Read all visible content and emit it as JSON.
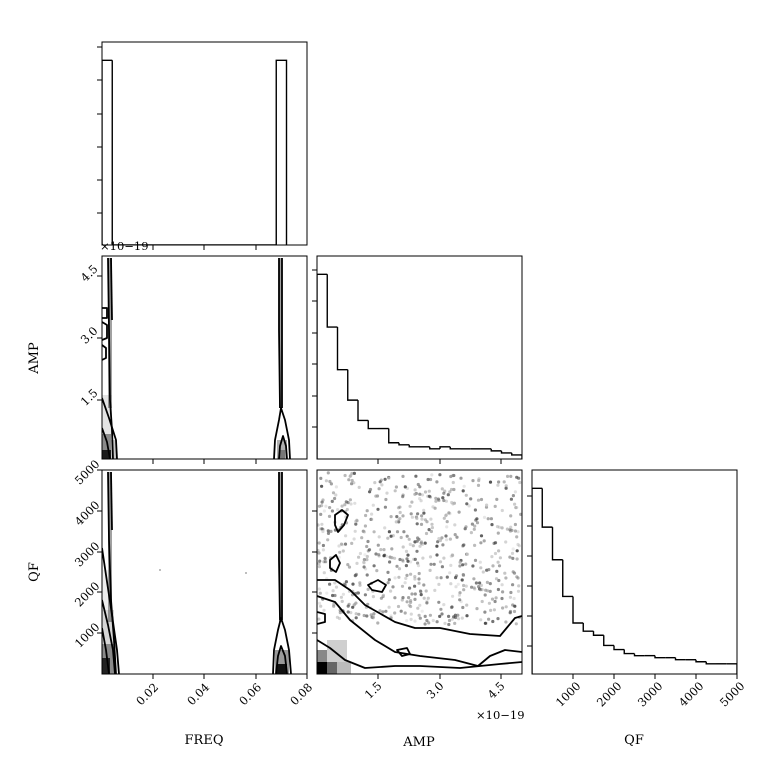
{
  "chart_data": {
    "type": "corner",
    "parameters": [
      "FREQ",
      "AMP",
      "QF"
    ],
    "labels": {
      "freq": "FREQ",
      "amp": "AMP",
      "qf": "QF"
    },
    "offset_text": {
      "top_left": "×10−19",
      "amp_axis": "×10−19"
    },
    "ticks": {
      "freq": [
        "0.02",
        "0.04",
        "0.06",
        "0.08"
      ],
      "amp_y": [
        "1.5",
        "3.0",
        "4.5"
      ],
      "amp_x": [
        "1.5",
        "3.0",
        "4.5"
      ],
      "qf_y": [
        "1000",
        "2000",
        "3000",
        "4000",
        "5000"
      ],
      "qf_x": [
        "1000",
        "2000",
        "3000",
        "4000",
        "5000"
      ]
    },
    "ranges": {
      "freq": [
        0.0,
        0.08
      ],
      "amp": [
        0.0,
        5.0
      ],
      "qf": [
        0,
        5000
      ]
    },
    "amp_scale": "1e-19",
    "freq_hist": {
      "edges": [
        0.0,
        0.004,
        0.068,
        0.072
      ],
      "counts": [
        0.91,
        0.0,
        0.91
      ]
    },
    "amp_hist": {
      "edges": [
        0.0,
        0.25,
        0.5,
        0.75,
        1.0,
        1.25,
        1.5,
        1.75,
        2.0,
        2.25,
        2.5,
        2.75,
        3.0,
        3.25,
        3.5,
        3.75,
        4.0,
        4.25,
        4.5,
        4.75,
        5.0
      ],
      "counts": [
        0.91,
        0.65,
        0.44,
        0.29,
        0.19,
        0.15,
        0.15,
        0.08,
        0.07,
        0.06,
        0.06,
        0.05,
        0.06,
        0.05,
        0.05,
        0.05,
        0.05,
        0.04,
        0.03,
        0.02
      ]
    },
    "qf_hist": {
      "edges": [
        0,
        250,
        500,
        750,
        1000,
        1250,
        1500,
        1750,
        2000,
        2250,
        2500,
        2750,
        3000,
        3250,
        3500,
        3750,
        4000,
        4250,
        4500,
        4750,
        5000
      ],
      "counts": [
        0.91,
        0.72,
        0.56,
        0.38,
        0.25,
        0.21,
        0.19,
        0.14,
        0.12,
        0.1,
        0.09,
        0.09,
        0.08,
        0.08,
        0.07,
        0.07,
        0.06,
        0.05,
        0.05,
        0.05
      ]
    }
  }
}
